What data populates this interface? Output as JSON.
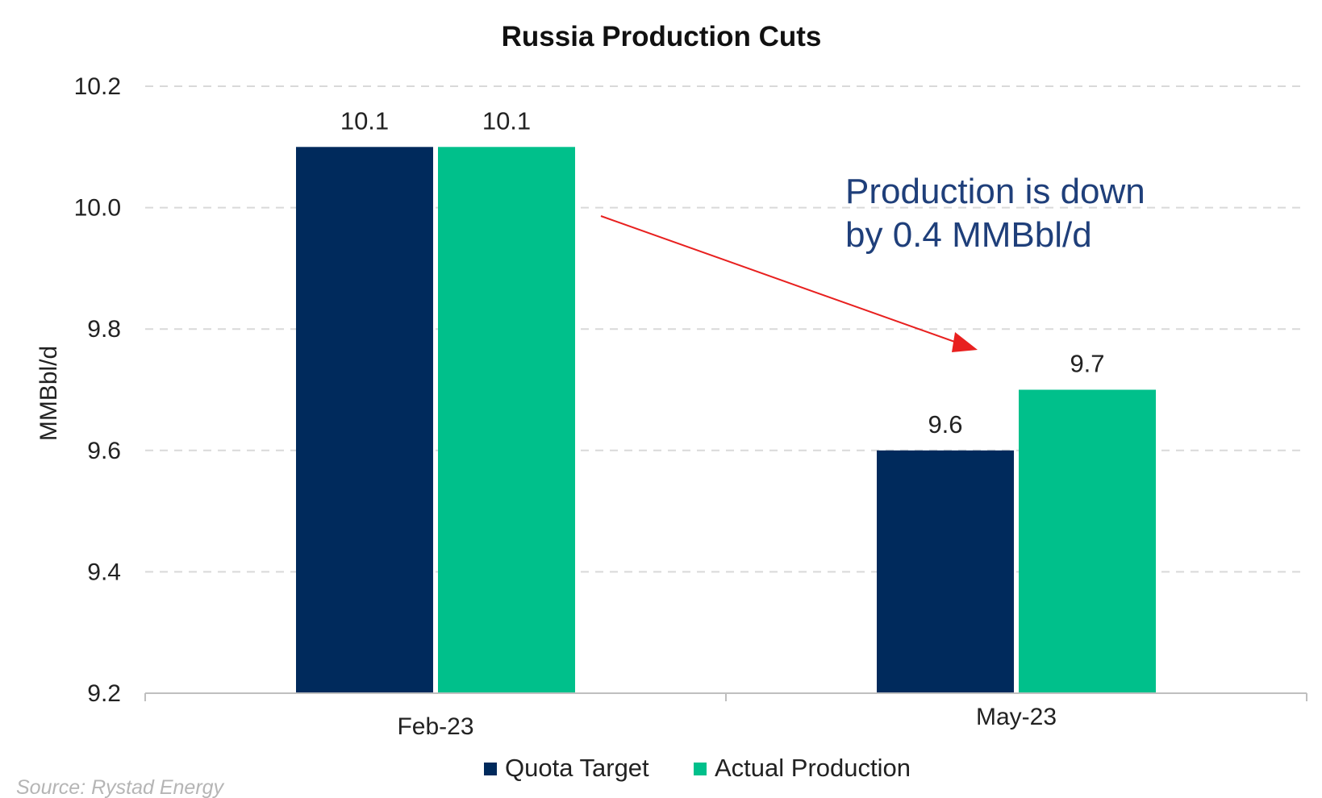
{
  "chart_data": {
    "type": "bar",
    "title": "Russia Production Cuts",
    "ylabel": "MMBbl/d",
    "xlabel": "",
    "categories": [
      "Feb-23",
      "May-23"
    ],
    "series": [
      {
        "name": "Quota Target",
        "values": [
          10.1,
          9.6
        ],
        "color": "#002a5c"
      },
      {
        "name": "Actual Production",
        "values": [
          10.1,
          9.7
        ],
        "color": "#00c08b"
      }
    ],
    "data_labels": [
      [
        "10.1",
        "9.6"
      ],
      [
        "10.1",
        "9.7"
      ]
    ],
    "ylim": [
      9.2,
      10.2
    ],
    "yticks": [
      "9.2",
      "9.4",
      "9.6",
      "9.8",
      "10.0",
      "10.2"
    ],
    "grid": true,
    "legend_position": "bottom",
    "annotations": [
      {
        "text_lines": [
          "Production is down",
          "by 0.4 MMBbl/d"
        ],
        "color": "#1f3f7a",
        "arrow_color": "#e8201f"
      }
    ],
    "source": "Source: Rystad Energy"
  }
}
